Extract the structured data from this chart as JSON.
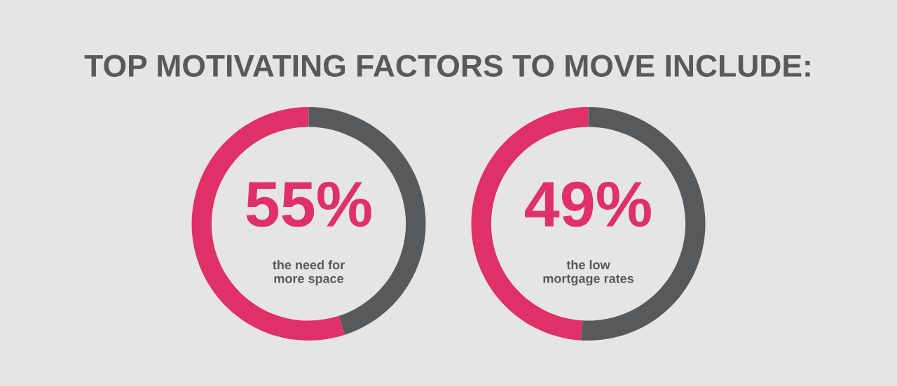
{
  "chart_data": [
    {
      "type": "donut",
      "title": "TOP MOTIVATING FACTORS TO MOVE INCLUDE:",
      "categories": [
        "the need for\nmore space",
        null
      ],
      "values": [
        55,
        45
      ],
      "colors": [
        "#e0306a",
        "#58595b"
      ],
      "value_labels": [
        "55%",
        null
      ]
    },
    {
      "type": "donut",
      "categories": [
        "the low\nmortgage rates",
        null
      ],
      "values": [
        49,
        51
      ],
      "colors": [
        "#e0306a",
        "#58595b"
      ],
      "value_labels": [
        "49%",
        null
      ]
    }
  ]
}
